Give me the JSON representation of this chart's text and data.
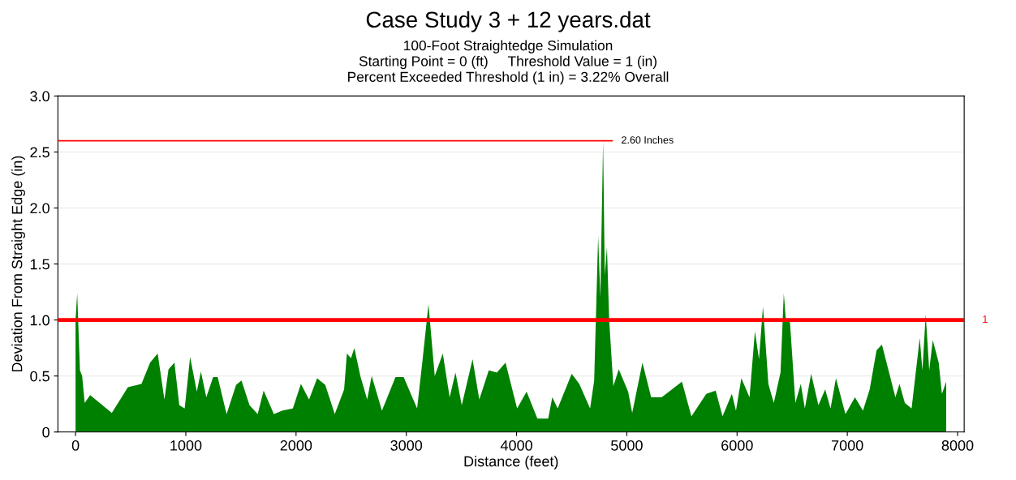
{
  "chart_data": {
    "type": "area",
    "title": "Case Study 3 + 12 years.dat",
    "subtitle": "100-Foot Straightedge Simulation\nStarting Point = 0 (ft)     Threshold Value = 1 (in)\nPercent Exceeded Threshold (1 in) = 3.22% Overall",
    "xlabel": "Distance (feet)",
    "ylabel": "Deviation From Straight Edge (in)",
    "x": [
      0,
      15,
      40,
      60,
      83,
      132,
      329,
      475,
      598,
      676,
      745,
      806,
      843,
      897,
      941,
      990,
      1039,
      1100,
      1137,
      1186,
      1248,
      1289,
      1370,
      1456,
      1505,
      1578,
      1652,
      1706,
      1799,
      1873,
      1971,
      2044,
      2118,
      2191,
      2265,
      2351,
      2436,
      2461,
      2498,
      2529,
      2583,
      2645,
      2686,
      2779,
      2902,
      2976,
      3098,
      3147,
      3201,
      3258,
      3331,
      3393,
      3446,
      3503,
      3601,
      3662,
      3748,
      3821,
      3900,
      4005,
      4091,
      4189,
      4287,
      4324,
      4373,
      4500,
      4569,
      4667,
      4704,
      4740,
      4760,
      4785,
      4800,
      4820,
      4840,
      4878,
      4927,
      5012,
      5049,
      5142,
      5221,
      5316,
      5500,
      5586,
      5721,
      5806,
      5868,
      5953,
      5990,
      6039,
      6113,
      6162,
      6199,
      6235,
      6284,
      6333,
      6394,
      6424,
      6443,
      6480,
      6529,
      6578,
      6615,
      6672,
      6738,
      6799,
      6848,
      6897,
      6983,
      7069,
      7142,
      7203,
      7265,
      7314,
      7387,
      7436,
      7473,
      7522,
      7583,
      7657,
      7681,
      7711,
      7743,
      7775,
      7829,
      7858,
      7897
    ],
    "series": [
      {
        "color": "#008000",
        "values": [
          1.0,
          1.24,
          0.55,
          0.5,
          0.26,
          0.33,
          0.17,
          0.4,
          0.43,
          0.62,
          0.7,
          0.29,
          0.56,
          0.62,
          0.24,
          0.21,
          0.67,
          0.36,
          0.54,
          0.31,
          0.49,
          0.49,
          0.16,
          0.42,
          0.46,
          0.24,
          0.16,
          0.37,
          0.16,
          0.19,
          0.21,
          0.43,
          0.29,
          0.48,
          0.42,
          0.16,
          0.38,
          0.7,
          0.66,
          0.75,
          0.5,
          0.29,
          0.5,
          0.19,
          0.49,
          0.49,
          0.21,
          0.64,
          1.14,
          0.5,
          0.7,
          0.31,
          0.53,
          0.24,
          0.65,
          0.29,
          0.55,
          0.53,
          0.62,
          0.21,
          0.36,
          0.12,
          0.12,
          0.31,
          0.21,
          0.52,
          0.43,
          0.21,
          0.46,
          1.75,
          1.2,
          2.6,
          1.4,
          1.65,
          1.0,
          0.41,
          0.56,
          0.36,
          0.17,
          0.62,
          0.31,
          0.31,
          0.45,
          0.14,
          0.34,
          0.37,
          0.14,
          0.34,
          0.19,
          0.48,
          0.31,
          0.9,
          0.65,
          1.12,
          0.43,
          0.26,
          0.53,
          1.24,
          0.99,
          0.98,
          0.26,
          0.43,
          0.21,
          0.52,
          0.24,
          0.38,
          0.21,
          0.48,
          0.16,
          0.31,
          0.19,
          0.38,
          0.73,
          0.78,
          0.5,
          0.31,
          0.43,
          0.26,
          0.21,
          0.84,
          0.55,
          1.05,
          0.55,
          0.82,
          0.62,
          0.34,
          0.45
        ]
      }
    ],
    "xlim": [
      -160,
      8060
    ],
    "xticks": [
      0,
      1000,
      2000,
      3000,
      4000,
      5000,
      6000,
      7000,
      8000
    ],
    "ylim": [
      0,
      3.0
    ],
    "yticks": [
      0,
      {
        "value": 0.5,
        "label": "0.5"
      },
      {
        "value": 1.0,
        "label": "1.0"
      },
      {
        "value": 1.5,
        "label": "1.5"
      },
      {
        "value": 2.0,
        "label": "2.0"
      },
      {
        "value": 2.5,
        "label": "2.5"
      },
      {
        "value": 3.0,
        "label": "3.0"
      }
    ],
    "ref_lines": [
      {
        "axis": "y",
        "value": 2.6,
        "label": "2.60 Inches",
        "color": "#ff0000",
        "line_style": "solid"
      },
      {
        "axis": "y",
        "value": 1,
        "label": "1",
        "color": "#ff0000",
        "line_style": "solid"
      }
    ],
    "grid": "y"
  }
}
